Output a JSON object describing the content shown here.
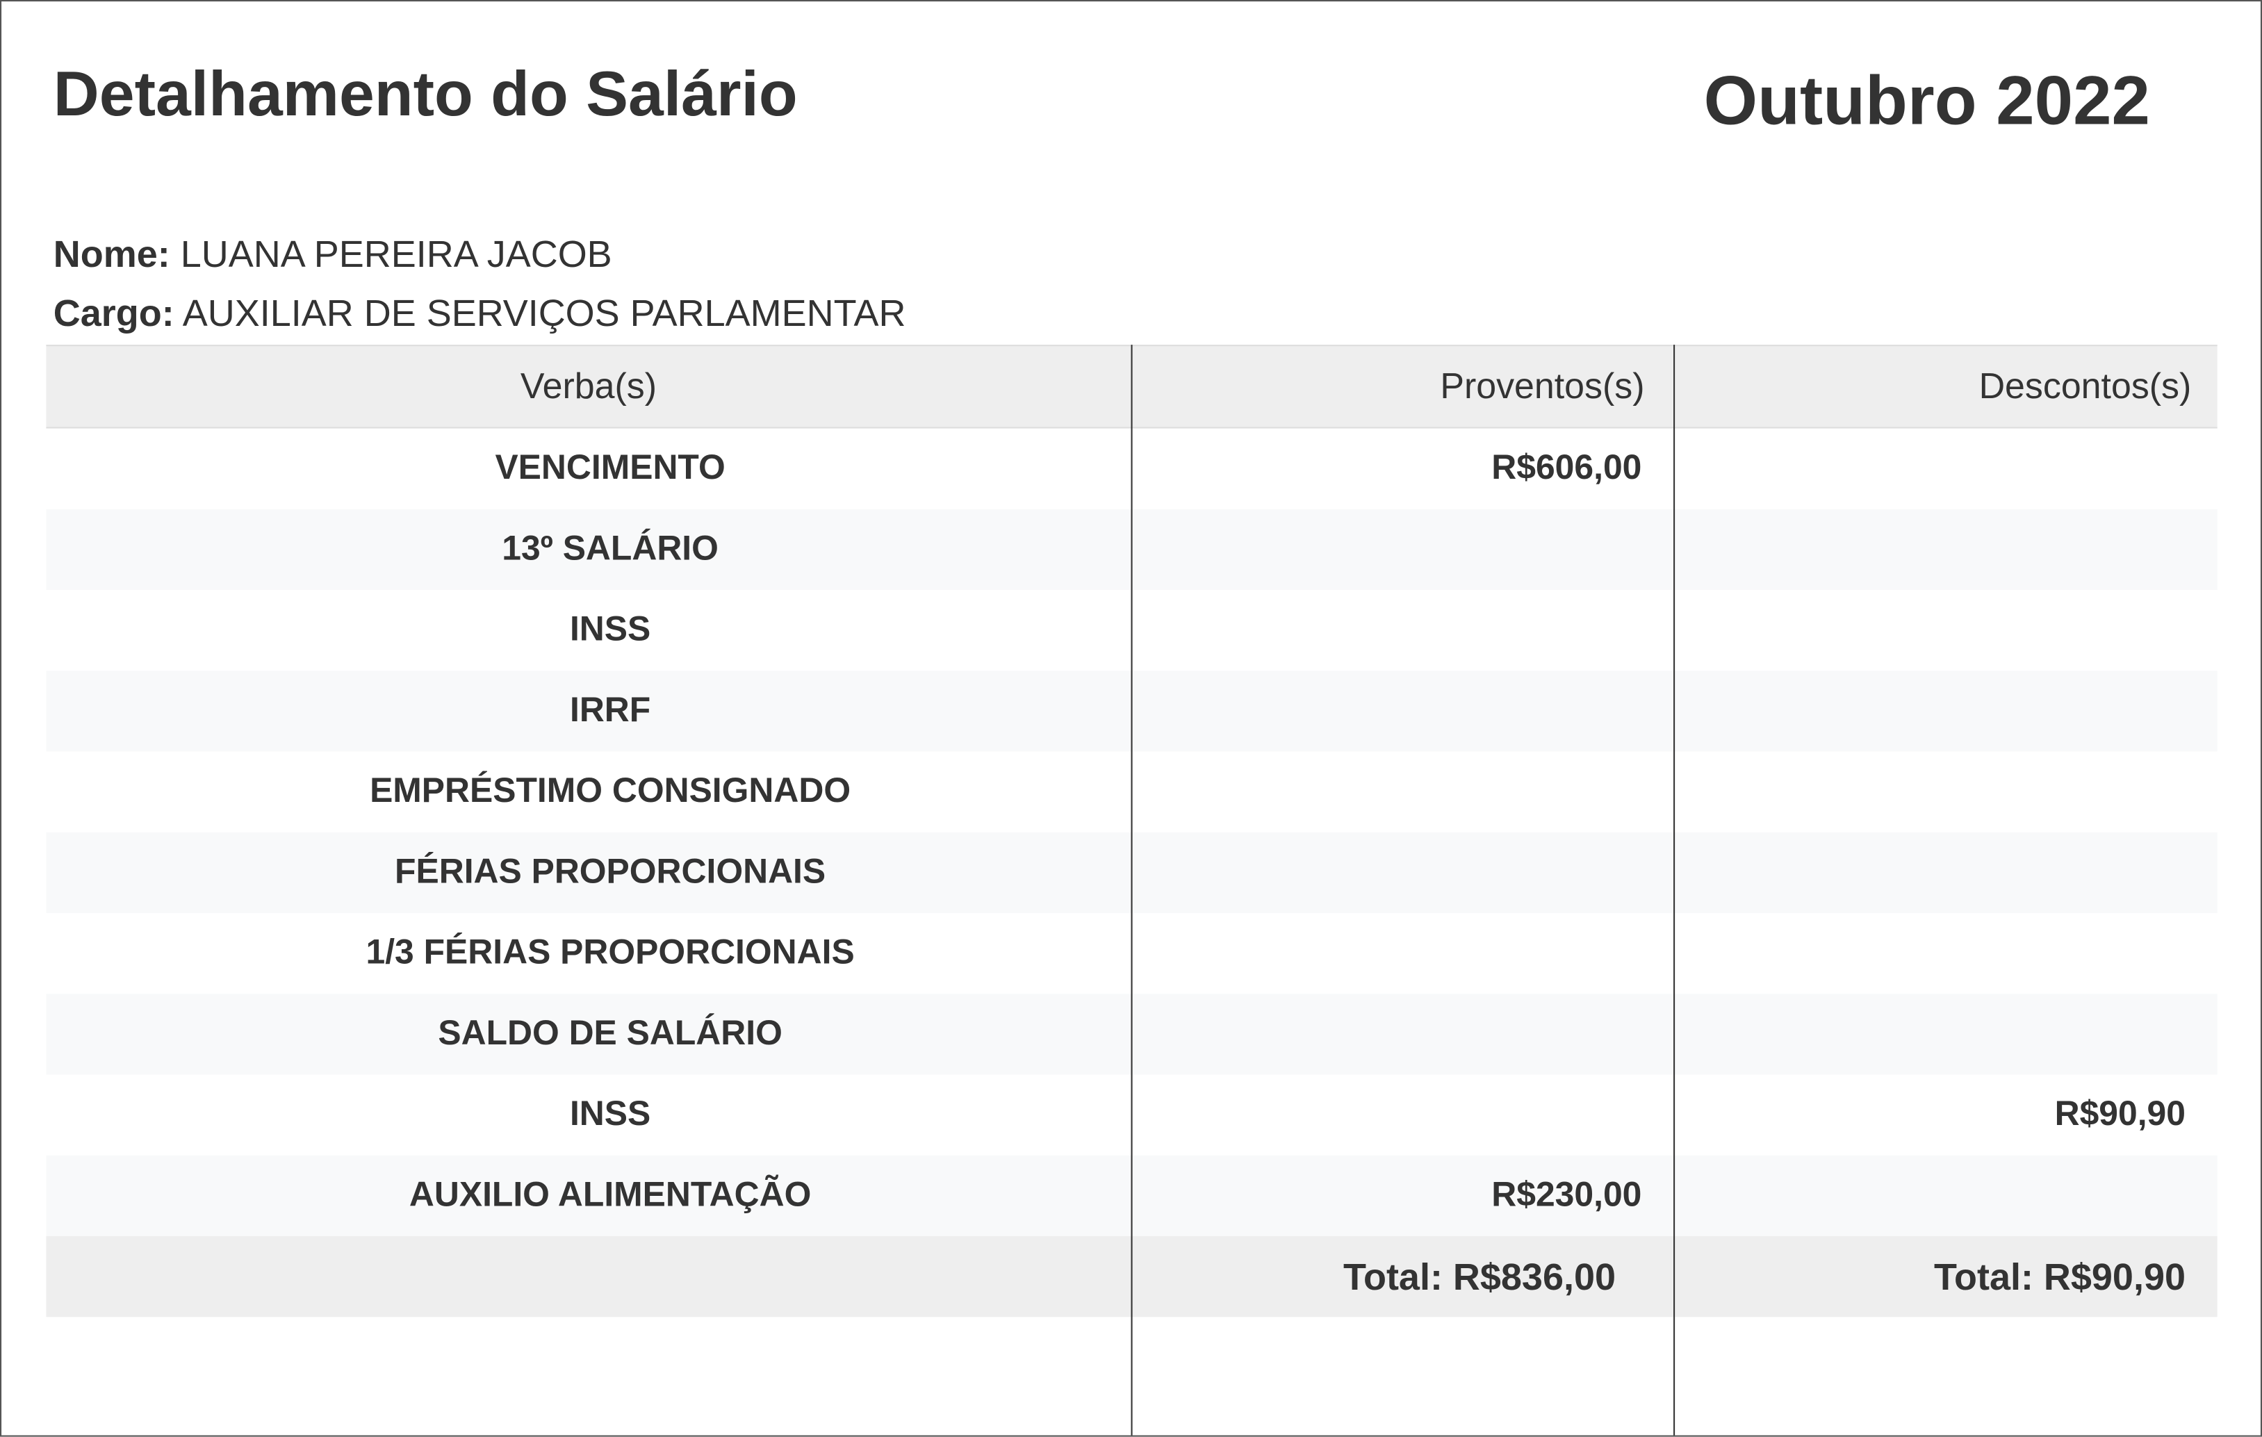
{
  "header": {
    "title": "Detalhamento do Salário",
    "period": "Outubro 2022"
  },
  "employee": {
    "name_label": "Nome:",
    "name": "LUANA PEREIRA JACOB",
    "role_label": "Cargo:",
    "role": "AUXILIAR DE SERVIÇOS PARLAMENTAR"
  },
  "table": {
    "columns": [
      "Verba(s)",
      "Proventos(s)",
      "Descontos(s)"
    ],
    "rows": [
      {
        "verba": "VENCIMENTO",
        "proventos": "R$606,00",
        "descontos": ""
      },
      {
        "verba": "13º SALÁRIO",
        "proventos": "",
        "descontos": ""
      },
      {
        "verba": "INSS",
        "proventos": "",
        "descontos": ""
      },
      {
        "verba": "IRRF",
        "proventos": "",
        "descontos": ""
      },
      {
        "verba": "EMPRÉSTIMO CONSIGNADO",
        "proventos": "",
        "descontos": ""
      },
      {
        "verba": "FÉRIAS PROPORCIONAIS",
        "proventos": "",
        "descontos": ""
      },
      {
        "verba": "1/3 FÉRIAS PROPORCIONAIS",
        "proventos": "",
        "descontos": ""
      },
      {
        "verba": "SALDO DE SALÁRIO",
        "proventos": "",
        "descontos": ""
      },
      {
        "verba": "INSS",
        "proventos": "",
        "descontos": "R$90,90"
      },
      {
        "verba": "AUXILIO ALIMENTAÇÃO",
        "proventos": "R$230,00",
        "descontos": ""
      }
    ],
    "total": {
      "proventos": "Total: R$836,00",
      "descontos": "Total: R$90,90"
    }
  }
}
